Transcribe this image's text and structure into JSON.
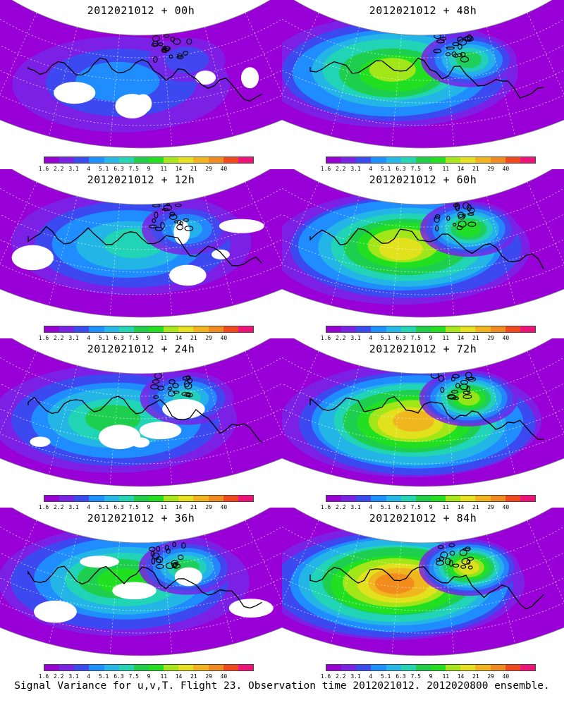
{
  "panels": [
    {
      "title": "2012021012 + 00h",
      "intensity": 0.25,
      "white_patches": true
    },
    {
      "title": "2012021012 + 48h",
      "intensity": 0.62,
      "white_patches": false
    },
    {
      "title": "2012021012 + 12h",
      "intensity": 0.38,
      "white_patches": true
    },
    {
      "title": "2012021012 + 60h",
      "intensity": 0.68,
      "white_patches": false
    },
    {
      "title": "2012021012 + 24h",
      "intensity": 0.48,
      "white_patches": true
    },
    {
      "title": "2012021012 + 72h",
      "intensity": 0.74,
      "white_patches": false
    },
    {
      "title": "2012021012 + 36h",
      "intensity": 0.55,
      "white_patches": true
    },
    {
      "title": "2012021012 + 84h",
      "intensity": 0.82,
      "white_patches": false
    }
  ],
  "colorbar": {
    "labels": [
      "1.6",
      "2.2",
      "3.1",
      "4",
      "5.1",
      "6.3",
      "7.5",
      "9",
      "11",
      "14",
      "21",
      "29",
      "40"
    ],
    "colors": [
      "#9900d8",
      "#7a22e6",
      "#3a4cf0",
      "#1e90ff",
      "#25b7e6",
      "#22d6b3",
      "#1fcf4a",
      "#22e01f",
      "#a8e619",
      "#e6e01f",
      "#f0b31e",
      "#f08a1e",
      "#f0491e",
      "#f0127a"
    ]
  },
  "footer": "Signal Variance for u,v,T. Flight 23. Observation time 2012021012. 2012020800 ensemble.",
  "chart_data": {
    "type": "heatmap",
    "title": "Signal Variance for u,v,T. Flight 23. Observation time 2012021012. 2012020800 ensemble.",
    "panels": [
      "2012021012 + 00h",
      "2012021012 + 12h",
      "2012021012 + 24h",
      "2012021012 + 36h",
      "2012021012 + 48h",
      "2012021012 + 60h",
      "2012021012 + 72h",
      "2012021012 + 84h"
    ],
    "colorbar_levels": [
      1.6,
      2.2,
      3.1,
      4,
      5.1,
      6.3,
      7.5,
      9,
      11,
      14,
      21,
      29,
      40
    ]
  }
}
